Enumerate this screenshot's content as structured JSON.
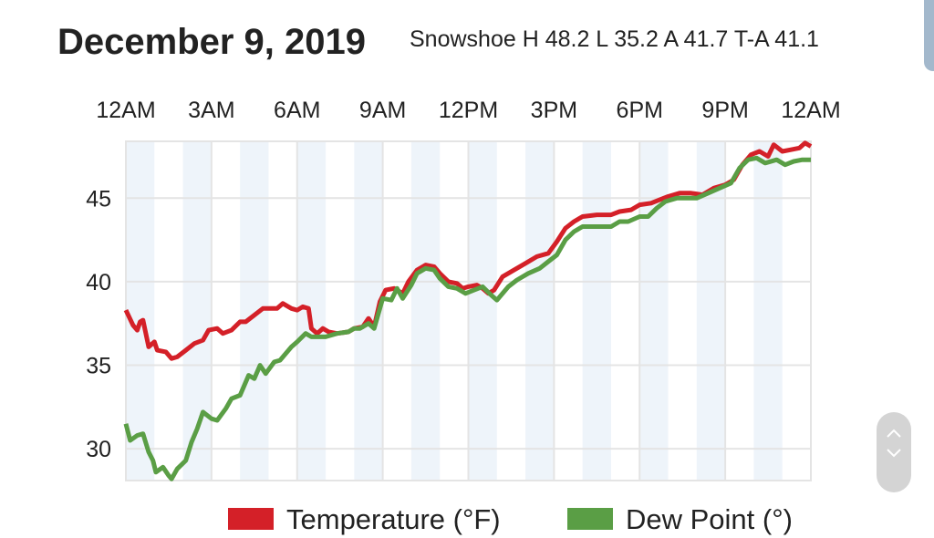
{
  "header": {
    "title": "December 9, 2019",
    "subtitle": "Snowshoe H 48.2 L 35.2 A 41.7 T-A 41.1"
  },
  "chart_data": {
    "type": "line",
    "title": "December 9, 2019",
    "subtitle": "Snowshoe H 48.2 L 35.2 A 41.7 T-A 41.1",
    "x_tick_labels": [
      "12AM",
      "3AM",
      "6AM",
      "9AM",
      "12PM",
      "3PM",
      "6PM",
      "9PM",
      "12AM"
    ],
    "x_ticks_hours": [
      0,
      3,
      6,
      9,
      12,
      15,
      18,
      21,
      24
    ],
    "xlim": [
      0,
      24
    ],
    "y_ticks": [
      30,
      35,
      40,
      45
    ],
    "ylim": [
      28.1,
      48.4
    ],
    "grid": true,
    "legend": "bottom",
    "series": [
      {
        "name": "Temperature (°F)",
        "color": "#d42028",
        "points": [
          [
            0,
            38.3
          ],
          [
            0.25,
            37.4
          ],
          [
            0.4,
            37.1
          ],
          [
            0.5,
            37.6
          ],
          [
            0.6,
            37.7
          ],
          [
            0.8,
            36.1
          ],
          [
            1.0,
            36.4
          ],
          [
            1.1,
            35.9
          ],
          [
            1.4,
            35.8
          ],
          [
            1.6,
            35.4
          ],
          [
            1.8,
            35.5
          ],
          [
            2.1,
            35.9
          ],
          [
            2.4,
            36.3
          ],
          [
            2.7,
            36.5
          ],
          [
            2.9,
            37.1
          ],
          [
            3.2,
            37.2
          ],
          [
            3.4,
            36.9
          ],
          [
            3.7,
            37.1
          ],
          [
            4.0,
            37.6
          ],
          [
            4.2,
            37.6
          ],
          [
            4.5,
            38.0
          ],
          [
            4.8,
            38.4
          ],
          [
            5.0,
            38.4
          ],
          [
            5.3,
            38.4
          ],
          [
            5.5,
            38.7
          ],
          [
            5.8,
            38.4
          ],
          [
            6.0,
            38.3
          ],
          [
            6.2,
            38.5
          ],
          [
            6.4,
            38.4
          ],
          [
            6.5,
            37.2
          ],
          [
            6.7,
            36.9
          ],
          [
            6.9,
            37.2
          ],
          [
            7.1,
            37.0
          ],
          [
            7.4,
            36.9
          ],
          [
            7.8,
            37.0
          ],
          [
            8.0,
            37.2
          ],
          [
            8.3,
            37.3
          ],
          [
            8.5,
            37.8
          ],
          [
            8.7,
            37.3
          ],
          [
            8.9,
            38.8
          ],
          [
            9.1,
            39.5
          ],
          [
            9.4,
            39.6
          ],
          [
            9.7,
            39.3
          ],
          [
            9.9,
            40.0
          ],
          [
            10.2,
            40.7
          ],
          [
            10.5,
            41.0
          ],
          [
            10.8,
            40.9
          ],
          [
            11.0,
            40.5
          ],
          [
            11.3,
            40.0
          ],
          [
            11.6,
            39.9
          ],
          [
            11.8,
            39.6
          ],
          [
            12.0,
            39.7
          ],
          [
            12.3,
            39.8
          ],
          [
            12.5,
            39.6
          ],
          [
            12.7,
            39.3
          ],
          [
            12.9,
            39.5
          ],
          [
            13.2,
            40.3
          ],
          [
            13.6,
            40.7
          ],
          [
            14.0,
            41.1
          ],
          [
            14.4,
            41.5
          ],
          [
            14.8,
            41.7
          ],
          [
            15.1,
            42.4
          ],
          [
            15.4,
            43.2
          ],
          [
            15.7,
            43.6
          ],
          [
            16.0,
            43.9
          ],
          [
            16.5,
            44.0
          ],
          [
            17.0,
            44.0
          ],
          [
            17.3,
            44.2
          ],
          [
            17.7,
            44.3
          ],
          [
            18.0,
            44.6
          ],
          [
            18.4,
            44.7
          ],
          [
            18.7,
            44.9
          ],
          [
            19.0,
            45.1
          ],
          [
            19.4,
            45.3
          ],
          [
            19.8,
            45.3
          ],
          [
            20.2,
            45.2
          ],
          [
            20.6,
            45.6
          ],
          [
            21.0,
            45.8
          ],
          [
            21.3,
            46.1
          ],
          [
            21.6,
            47.0
          ],
          [
            21.9,
            47.6
          ],
          [
            22.2,
            47.8
          ],
          [
            22.5,
            47.5
          ],
          [
            22.7,
            48.2
          ],
          [
            23.0,
            47.8
          ],
          [
            23.3,
            47.9
          ],
          [
            23.6,
            48.0
          ],
          [
            23.8,
            48.3
          ],
          [
            24,
            48.1
          ]
        ]
      },
      {
        "name": "Dew Point (°)",
        "color": "#5a9e45",
        "points": [
          [
            0,
            31.5
          ],
          [
            0.15,
            30.5
          ],
          [
            0.4,
            30.8
          ],
          [
            0.6,
            30.9
          ],
          [
            0.8,
            29.8
          ],
          [
            0.95,
            29.3
          ],
          [
            1.05,
            28.6
          ],
          [
            1.3,
            28.9
          ],
          [
            1.5,
            28.4
          ],
          [
            1.6,
            28.2
          ],
          [
            1.8,
            28.8
          ],
          [
            2.1,
            29.3
          ],
          [
            2.3,
            30.4
          ],
          [
            2.5,
            31.2
          ],
          [
            2.7,
            32.2
          ],
          [
            3.0,
            31.8
          ],
          [
            3.2,
            31.7
          ],
          [
            3.5,
            32.4
          ],
          [
            3.7,
            33.0
          ],
          [
            4.0,
            33.2
          ],
          [
            4.3,
            34.4
          ],
          [
            4.5,
            34.2
          ],
          [
            4.7,
            35.0
          ],
          [
            4.9,
            34.5
          ],
          [
            5.2,
            35.2
          ],
          [
            5.4,
            35.3
          ],
          [
            5.8,
            36.1
          ],
          [
            6.0,
            36.4
          ],
          [
            6.3,
            36.9
          ],
          [
            6.5,
            36.7
          ],
          [
            7.0,
            36.7
          ],
          [
            7.4,
            36.9
          ],
          [
            7.8,
            37.0
          ],
          [
            8.0,
            37.2
          ],
          [
            8.2,
            37.2
          ],
          [
            8.5,
            37.5
          ],
          [
            8.7,
            37.2
          ],
          [
            9.0,
            39.0
          ],
          [
            9.3,
            38.9
          ],
          [
            9.5,
            39.6
          ],
          [
            9.7,
            39.0
          ],
          [
            10.0,
            39.8
          ],
          [
            10.2,
            40.5
          ],
          [
            10.5,
            40.8
          ],
          [
            10.8,
            40.7
          ],
          [
            11.0,
            40.2
          ],
          [
            11.3,
            39.7
          ],
          [
            11.6,
            39.6
          ],
          [
            11.9,
            39.3
          ],
          [
            12.2,
            39.5
          ],
          [
            12.5,
            39.7
          ],
          [
            12.8,
            39.2
          ],
          [
            13.0,
            38.9
          ],
          [
            13.4,
            39.7
          ],
          [
            13.7,
            40.1
          ],
          [
            14.1,
            40.5
          ],
          [
            14.5,
            40.8
          ],
          [
            14.8,
            41.2
          ],
          [
            15.1,
            41.6
          ],
          [
            15.4,
            42.5
          ],
          [
            15.7,
            43.0
          ],
          [
            16.0,
            43.3
          ],
          [
            16.5,
            43.3
          ],
          [
            17.0,
            43.3
          ],
          [
            17.3,
            43.6
          ],
          [
            17.6,
            43.6
          ],
          [
            18.0,
            43.9
          ],
          [
            18.3,
            43.9
          ],
          [
            18.6,
            44.4
          ],
          [
            18.9,
            44.8
          ],
          [
            19.3,
            45.0
          ],
          [
            19.6,
            45.0
          ],
          [
            20.0,
            45.0
          ],
          [
            20.4,
            45.3
          ],
          [
            20.8,
            45.6
          ],
          [
            21.2,
            45.9
          ],
          [
            21.5,
            46.8
          ],
          [
            21.8,
            47.3
          ],
          [
            22.1,
            47.4
          ],
          [
            22.4,
            47.1
          ],
          [
            22.8,
            47.3
          ],
          [
            23.1,
            47.0
          ],
          [
            23.4,
            47.2
          ],
          [
            23.7,
            47.3
          ],
          [
            24,
            47.3
          ]
        ]
      }
    ]
  },
  "colors": {
    "stripe": "#eef4fa",
    "grid": "#e4e4e4",
    "tab": "#a3b8cc",
    "scroller": "#d4d4d4"
  }
}
